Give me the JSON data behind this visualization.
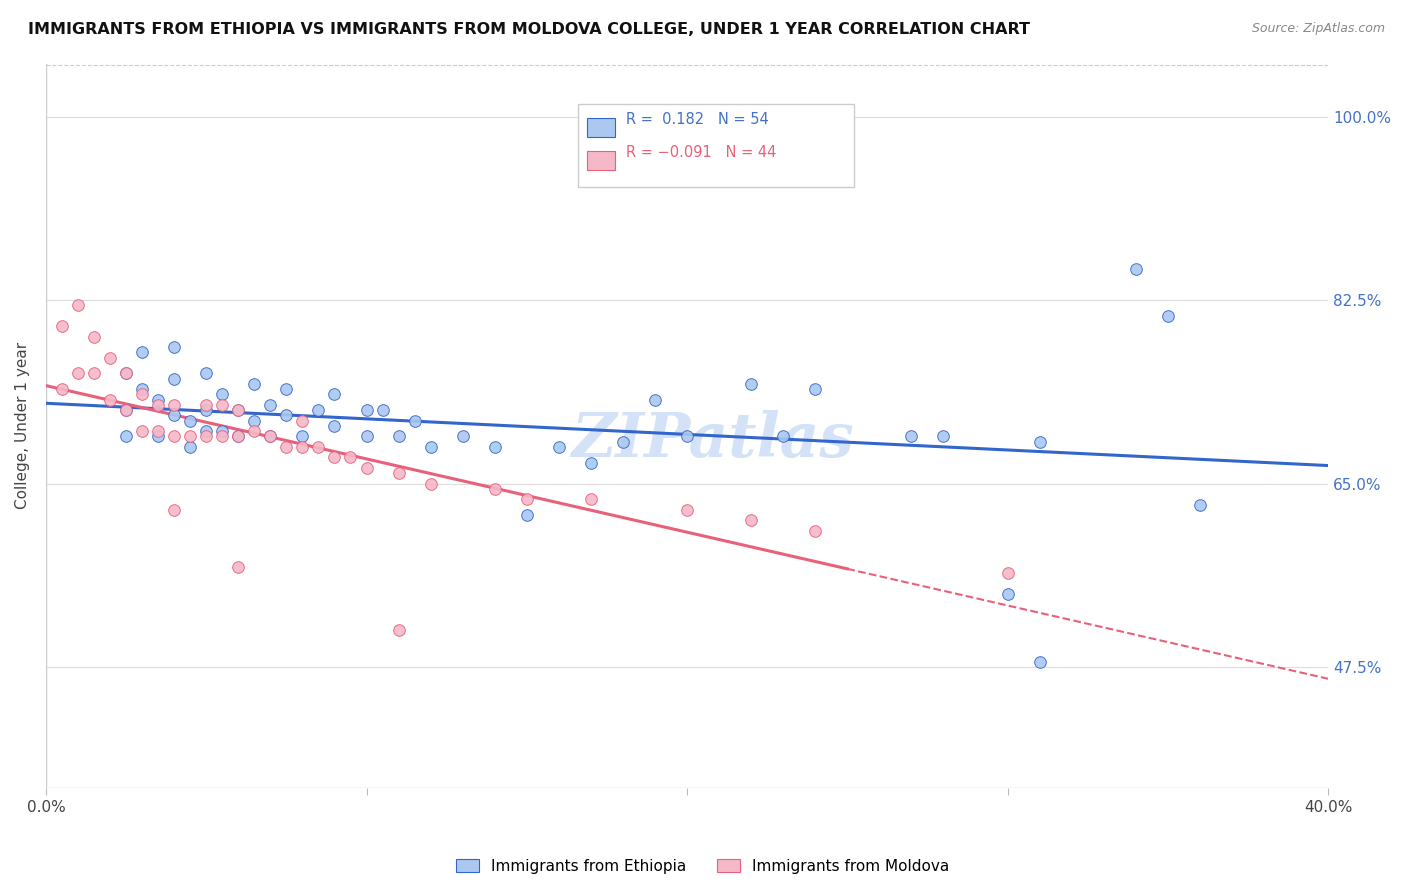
{
  "title": "IMMIGRANTS FROM ETHIOPIA VS IMMIGRANTS FROM MOLDOVA COLLEGE, UNDER 1 YEAR CORRELATION CHART",
  "source": "Source: ZipAtlas.com",
  "ylabel": "College, Under 1 year",
  "xlim": [
    0.0,
    0.4
  ],
  "ylim": [
    0.36,
    1.05
  ],
  "ethiopia_R": 0.182,
  "ethiopia_N": 54,
  "moldova_R": -0.091,
  "moldova_N": 44,
  "ethiopia_color": "#aac8f0",
  "moldova_color": "#f5b8c8",
  "ethiopia_line_color": "#3366cc",
  "moldova_line_color": "#e8607a",
  "ethiopia_x": [
    0.025,
    0.025,
    0.025,
    0.03,
    0.03,
    0.035,
    0.035,
    0.04,
    0.04,
    0.04,
    0.045,
    0.045,
    0.05,
    0.05,
    0.05,
    0.055,
    0.055,
    0.06,
    0.06,
    0.065,
    0.065,
    0.07,
    0.07,
    0.075,
    0.075,
    0.08,
    0.085,
    0.09,
    0.09,
    0.1,
    0.1,
    0.105,
    0.11,
    0.115,
    0.12,
    0.13,
    0.14,
    0.15,
    0.16,
    0.17,
    0.18,
    0.19,
    0.2,
    0.22,
    0.23,
    0.24,
    0.27,
    0.28,
    0.3,
    0.31,
    0.34,
    0.35,
    0.31,
    0.36
  ],
  "ethiopia_y": [
    0.695,
    0.72,
    0.755,
    0.74,
    0.775,
    0.695,
    0.73,
    0.715,
    0.75,
    0.78,
    0.685,
    0.71,
    0.7,
    0.72,
    0.755,
    0.7,
    0.735,
    0.695,
    0.72,
    0.71,
    0.745,
    0.695,
    0.725,
    0.715,
    0.74,
    0.695,
    0.72,
    0.705,
    0.735,
    0.695,
    0.72,
    0.72,
    0.695,
    0.71,
    0.685,
    0.695,
    0.685,
    0.62,
    0.685,
    0.67,
    0.69,
    0.73,
    0.695,
    0.745,
    0.695,
    0.74,
    0.695,
    0.695,
    0.545,
    0.69,
    0.855,
    0.81,
    0.48,
    0.63
  ],
  "moldova_x": [
    0.005,
    0.005,
    0.01,
    0.01,
    0.015,
    0.015,
    0.02,
    0.02,
    0.025,
    0.025,
    0.03,
    0.03,
    0.035,
    0.035,
    0.04,
    0.04,
    0.045,
    0.05,
    0.05,
    0.055,
    0.055,
    0.06,
    0.06,
    0.065,
    0.07,
    0.075,
    0.08,
    0.08,
    0.085,
    0.09,
    0.095,
    0.1,
    0.11,
    0.12,
    0.14,
    0.15,
    0.17,
    0.2,
    0.22,
    0.24,
    0.04,
    0.06,
    0.11,
    0.3
  ],
  "moldova_y": [
    0.74,
    0.8,
    0.755,
    0.82,
    0.755,
    0.79,
    0.73,
    0.77,
    0.72,
    0.755,
    0.7,
    0.735,
    0.7,
    0.725,
    0.695,
    0.725,
    0.695,
    0.695,
    0.725,
    0.695,
    0.725,
    0.695,
    0.72,
    0.7,
    0.695,
    0.685,
    0.685,
    0.71,
    0.685,
    0.675,
    0.675,
    0.665,
    0.66,
    0.65,
    0.645,
    0.635,
    0.635,
    0.625,
    0.615,
    0.605,
    0.625,
    0.57,
    0.51,
    0.565
  ],
  "y_tick_positions": [
    0.475,
    0.65,
    0.825,
    1.0
  ],
  "y_tick_labels": [
    "47.5%",
    "65.0%",
    "82.5%",
    "100.0%"
  ],
  "x_tick_positions": [
    0.0,
    0.1,
    0.2,
    0.3,
    0.4
  ],
  "x_tick_labels": [
    "0.0%",
    "",
    "",
    "",
    "40.0%"
  ],
  "legend_eth_text": "R =  0.182   N = 54",
  "legend_mol_text": "R = −0.091   N = 44",
  "watermark_text": "ZIPatlas"
}
